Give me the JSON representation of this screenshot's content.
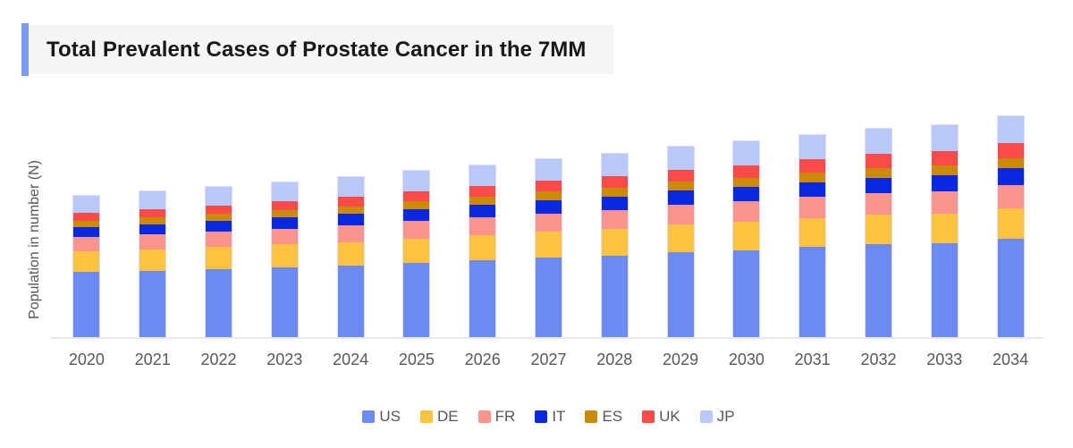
{
  "header": {
    "title": "Total Prevalent Cases of Prostate Cancer in the 7MM"
  },
  "colors": {
    "title_accent": "#7b9cf5",
    "title_background": "#f5f5f6",
    "axis_line": "#e8e9ef",
    "axis_text": "#58585a",
    "title_text": "#17181a"
  },
  "chart_data": {
    "type": "bar",
    "stacked": true,
    "title": "Total Prevalent Cases of Prostate Cancer in the 7MM",
    "xlabel": "",
    "ylabel": "Population in number (N)",
    "grid": false,
    "legend_position": "bottom",
    "value_units": "relative height (y-axis has no numeric tick labels)",
    "categories": [
      "2020",
      "2021",
      "2022",
      "2023",
      "2024",
      "2025",
      "2026",
      "2027",
      "2028",
      "2029",
      "2030",
      "2031",
      "2032",
      "2033",
      "2034"
    ],
    "series": [
      {
        "name": "US",
        "color": "#6d8af3",
        "values": [
          74,
          75.5,
          77,
          79,
          81,
          84.5,
          87.5,
          90.5,
          92.5,
          96.5,
          98.5,
          102,
          105,
          106,
          111
        ]
      },
      {
        "name": "DE",
        "color": "#fdc23e",
        "values": [
          23.5,
          24,
          25,
          26,
          26.5,
          27,
          27.5,
          28.5,
          29.5,
          31,
          32,
          32.5,
          33,
          33.5,
          34
        ]
      },
      {
        "name": "FR",
        "color": "#fc948e",
        "values": [
          16,
          16.5,
          17,
          17.5,
          18.5,
          19.5,
          20,
          20.5,
          21.5,
          22,
          22.5,
          23.5,
          24,
          24.5,
          26
        ]
      },
      {
        "name": "IT",
        "color": "#0a27e2",
        "values": [
          11,
          11.5,
          12,
          12.5,
          13,
          13.5,
          14,
          14.5,
          15,
          15.3,
          15.7,
          16.3,
          17.3,
          17.7,
          19
        ]
      },
      {
        "name": "ES",
        "color": "#cb8b07",
        "values": [
          7,
          7.3,
          7.7,
          8,
          8.3,
          8.7,
          9.3,
          9.7,
          10,
          10.2,
          10.5,
          10.8,
          10.8,
          11,
          11
        ]
      },
      {
        "name": "UK",
        "color": "#fa4b49",
        "values": [
          9,
          9.2,
          9.5,
          9.8,
          10.3,
          10.8,
          11.3,
          12,
          12.7,
          13.5,
          14.3,
          15,
          16,
          16.8,
          17.5
        ]
      },
      {
        "name": "JP",
        "color": "#b9c7f9",
        "values": [
          19,
          20,
          20.7,
          21.4,
          22.2,
          23,
          23.7,
          24.3,
          25.3,
          26,
          26.6,
          27.3,
          28,
          28.7,
          29.4
        ]
      }
    ]
  }
}
